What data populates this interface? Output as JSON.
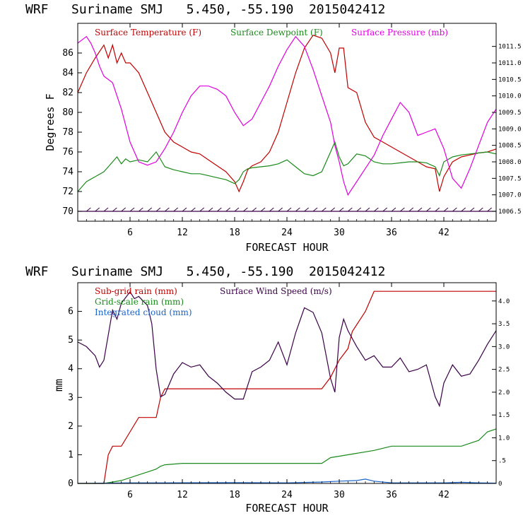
{
  "colors": {
    "temperature": "#c00000",
    "dewpoint": "#1a8a1a",
    "pressure": "#e000e0",
    "wind": "#3a0048",
    "subgrid": "#c00000",
    "gridscale": "#1a8a1a",
    "cloud": "#1a64c8",
    "axis": "#000000"
  },
  "chart_data": [
    {
      "type": "line",
      "title": "WRF   Suriname SMJ   5.450, -55.190  2015042412",
      "xlabel": "FORECAST HOUR",
      "ylabel": "Degrees F",
      "xlim": [
        0,
        48
      ],
      "ylim": [
        69,
        89
      ],
      "y2lim": [
        1006.2,
        1012.2
      ],
      "xticks": [
        "6",
        "12",
        "18",
        "24",
        "30",
        "36",
        "42"
      ],
      "yticks": [
        "70",
        "72",
        "74",
        "76",
        "78",
        "80",
        "82",
        "84",
        "86"
      ],
      "y2ticks": [
        "1006.5",
        "1007.0",
        "1007.5",
        "1008.0",
        "1008.5",
        "1009.0",
        "1009.5",
        "1010.0",
        "1010.5",
        "1011.0",
        "1011.5"
      ],
      "legend": [
        "Surface Temperature (F)",
        "Surface Dewpoint (F)",
        "Surface Pressure (mb)"
      ],
      "series": [
        {
          "name": "Surface Temperature (F)",
          "axis": "left",
          "x": [
            0,
            1,
            2,
            3,
            3.5,
            4,
            4.5,
            5,
            5.5,
            6,
            7,
            8,
            9,
            10,
            11,
            12,
            13,
            14,
            15,
            16,
            17,
            18,
            18.5,
            19,
            19.5,
            20,
            21,
            22,
            23,
            24,
            25,
            26,
            27,
            28,
            29,
            29.5,
            30,
            30.5,
            31,
            32,
            33,
            34,
            35,
            36,
            37,
            38,
            39,
            40,
            41,
            41.5,
            42,
            43,
            44,
            45,
            46,
            47,
            48
          ],
          "y": [
            82,
            84,
            85.5,
            86.8,
            85.5,
            86.8,
            85,
            86,
            85,
            85,
            84,
            82,
            80,
            78,
            77,
            76.5,
            76,
            75.8,
            75.2,
            74.6,
            74,
            73,
            72,
            73,
            74.2,
            74.6,
            75,
            76,
            78,
            81,
            84,
            86.5,
            87.8,
            87.5,
            86,
            84,
            86.5,
            86.5,
            82.5,
            82,
            79,
            77.5,
            77,
            76.5,
            76,
            75.5,
            75,
            74.5,
            74.3,
            72,
            73.5,
            75,
            75.5,
            75.7,
            75.9,
            76,
            76.3
          ]
        },
        {
          "name": "Surface Dewpoint (F)",
          "axis": "left",
          "x": [
            0,
            1,
            2,
            3,
            3.5,
            4,
            4.5,
            5,
            5.5,
            6,
            7,
            8,
            9,
            10,
            11,
            12,
            13,
            14,
            15,
            16,
            17,
            18,
            18.5,
            19,
            19.5,
            20,
            21,
            22,
            23,
            24,
            25,
            26,
            27,
            28,
            29,
            29.5,
            30,
            30.5,
            31,
            32,
            33,
            34,
            35,
            36,
            37,
            38,
            39,
            40,
            41,
            41.5,
            42,
            43,
            44,
            45,
            46,
            47,
            48
          ],
          "y": [
            72,
            73,
            73.5,
            74,
            74.5,
            75,
            75.5,
            74.8,
            75.3,
            75,
            75.2,
            75,
            76,
            74.5,
            74.2,
            74,
            73.8,
            73.8,
            73.6,
            73.4,
            73.2,
            72.8,
            73.2,
            74,
            74.3,
            74.4,
            74.5,
            74.6,
            74.8,
            75.2,
            74.5,
            73.8,
            73.6,
            74,
            76,
            77,
            75.5,
            74.6,
            74.8,
            75.8,
            75.6,
            75,
            74.8,
            74.8,
            74.9,
            75,
            75,
            74.9,
            74.5,
            73.6,
            75,
            75.5,
            75.7,
            75.8,
            75.9,
            76,
            75.8
          ]
        },
        {
          "name": "Surface Pressure (mb)",
          "axis": "right",
          "x": [
            0,
            0.5,
            1,
            1.5,
            2,
            2.5,
            3,
            4,
            5,
            6,
            7,
            8,
            9,
            10,
            11,
            12,
            13,
            14,
            15,
            16,
            17,
            18,
            19,
            20,
            21,
            22,
            23,
            24,
            25,
            26,
            27,
            28,
            29,
            29.5,
            30,
            30.5,
            31,
            32,
            33,
            34,
            35,
            36,
            37,
            38,
            39,
            40,
            41,
            42,
            43,
            44,
            45,
            46,
            47,
            48
          ],
          "y": [
            1011.6,
            1011.7,
            1011.8,
            1011.6,
            1011.3,
            1010.9,
            1010.6,
            1010.4,
            1009.6,
            1008.6,
            1008.0,
            1007.9,
            1008.0,
            1008.4,
            1008.9,
            1009.5,
            1010.0,
            1010.3,
            1010.3,
            1010.2,
            1010.0,
            1009.5,
            1009.1,
            1009.3,
            1009.8,
            1010.3,
            1010.9,
            1011.4,
            1011.8,
            1011.5,
            1010.8,
            1010.0,
            1009.2,
            1008.5,
            1008.0,
            1007.4,
            1007.0,
            1007.4,
            1007.8,
            1008.2,
            1008.8,
            1009.3,
            1009.8,
            1009.5,
            1008.8,
            1008.9,
            1009.0,
            1008.4,
            1007.5,
            1007.2,
            1007.8,
            1008.5,
            1009.2,
            1009.6
          ]
        },
        {
          "name": "Wind barbs",
          "axis": "left",
          "x": [
            0,
            48
          ],
          "y": [
            70,
            70
          ]
        }
      ]
    },
    {
      "type": "line",
      "title": "WRF   Suriname SMJ   5.450, -55.190  2015042412",
      "xlabel": "FORECAST HOUR",
      "ylabel": "mm",
      "xlim": [
        0,
        48
      ],
      "ylim": [
        0,
        7
      ],
      "y2lim": [
        0,
        4.4
      ],
      "xticks": [
        "6",
        "12",
        "18",
        "24",
        "30",
        "36",
        "42"
      ],
      "yticks": [
        "0",
        "1",
        "2",
        "3",
        "4",
        "5",
        "6"
      ],
      "y2ticks": [
        "0",
        ".5",
        "1.0",
        "1.5",
        "2.0",
        "2.5",
        "3.0",
        "3.5",
        "4.0"
      ],
      "legend": [
        "Sub-grid rain (mm)",
        "Grid-scale rain (mm)",
        "Integrated cloud (mm)",
        "Surface Wind Speed (m/s)"
      ],
      "series": [
        {
          "name": "Sub-grid rain (mm)",
          "axis": "left",
          "x": [
            0,
            3,
            3.5,
            4,
            5,
            6,
            7,
            8,
            9,
            9.5,
            10,
            12,
            18,
            24,
            28,
            29,
            30,
            31,
            31.5,
            33,
            34,
            36,
            42,
            48
          ],
          "y": [
            0,
            0,
            1,
            1.3,
            1.3,
            1.8,
            2.3,
            2.3,
            2.3,
            3.0,
            3.3,
            3.3,
            3.3,
            3.3,
            3.3,
            3.7,
            4.3,
            4.7,
            5.3,
            6.0,
            6.7,
            6.7,
            6.7,
            6.7
          ]
        },
        {
          "name": "Grid-scale rain (mm)",
          "axis": "left",
          "x": [
            0,
            3,
            4,
            5,
            6,
            7,
            8,
            9,
            9.5,
            10,
            12,
            18,
            24,
            28,
            29,
            30,
            32,
            34,
            36,
            40,
            44,
            46,
            47,
            48
          ],
          "y": [
            0,
            0,
            0.05,
            0.1,
            0.2,
            0.3,
            0.4,
            0.5,
            0.6,
            0.65,
            0.7,
            0.7,
            0.7,
            0.7,
            0.9,
            0.95,
            1.05,
            1.15,
            1.3,
            1.3,
            1.3,
            1.5,
            1.8,
            1.9
          ]
        },
        {
          "name": "Integrated cloud (mm)",
          "axis": "left",
          "x": [
            0,
            6,
            10,
            18,
            24,
            28,
            30,
            32,
            33,
            34,
            36,
            42,
            44,
            46,
            48
          ],
          "y": [
            0,
            0.02,
            0.02,
            0.03,
            0.02,
            0.05,
            0.08,
            0.1,
            0.15,
            0.08,
            0.02,
            0.02,
            0.04,
            0.02,
            0.01
          ]
        },
        {
          "name": "Surface Wind Speed (m/s)",
          "axis": "right",
          "x": [
            0,
            1,
            2,
            2.5,
            3,
            4,
            4.5,
            5,
            6,
            6.5,
            7,
            7.5,
            8,
            8.5,
            9,
            9.5,
            10,
            11,
            12,
            13,
            14,
            15,
            16,
            17,
            18,
            19,
            20,
            21,
            22,
            23,
            24,
            25,
            26,
            27,
            28,
            29,
            29.5,
            30,
            30.5,
            31,
            32,
            33,
            34,
            35,
            36,
            37,
            38,
            39,
            40,
            41,
            41.5,
            42,
            43,
            44,
            45,
            46,
            47,
            48
          ],
          "y": [
            3.1,
            3.0,
            2.8,
            2.55,
            2.7,
            3.8,
            3.6,
            3.95,
            4.2,
            4.05,
            4.1,
            4.0,
            3.9,
            3.5,
            2.5,
            1.9,
            1.95,
            2.4,
            2.65,
            2.55,
            2.6,
            2.35,
            2.2,
            2.0,
            1.85,
            1.85,
            2.45,
            2.55,
            2.7,
            3.1,
            2.6,
            3.3,
            3.85,
            3.75,
            3.3,
            2.3,
            2.0,
            3.2,
            3.6,
            3.35,
            3.0,
            2.7,
            2.8,
            2.55,
            2.55,
            2.75,
            2.45,
            2.5,
            2.6,
            1.9,
            1.7,
            2.2,
            2.6,
            2.35,
            2.4,
            2.7,
            3.05,
            3.35
          ]
        }
      ]
    }
  ]
}
